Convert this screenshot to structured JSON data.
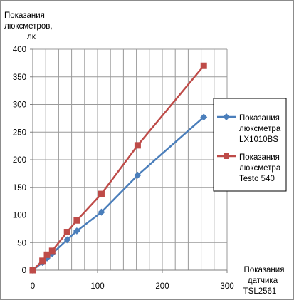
{
  "chart_data": {
    "type": "line",
    "ylabel_lines": [
      "Показания",
      "люксметров,",
      "лк"
    ],
    "xlabel_lines": [
      "Показания",
      "датчика",
      "TSL2561"
    ],
    "xlim": [
      0,
      300
    ],
    "ylim": [
      0,
      400
    ],
    "x_ticks": [
      0,
      100,
      200,
      300
    ],
    "y_ticks": [
      0,
      50,
      100,
      150,
      200,
      250,
      300,
      350,
      400
    ],
    "grid": true,
    "legend_position": "right",
    "series": [
      {
        "name_lines": [
          "Показания",
          "люксметра",
          "LX1010BS"
        ],
        "color": "#4a7ebb",
        "marker": "diamond",
        "x": [
          0,
          15,
          22,
          30,
          53,
          68,
          106,
          162,
          264
        ],
        "y": [
          0,
          14,
          22,
          30,
          55,
          71,
          105,
          172,
          277
        ]
      },
      {
        "name_lines": [
          "Показания",
          "люксметра",
          "Testo  540"
        ],
        "color": "#be4b48",
        "marker": "square",
        "x": [
          0,
          15,
          22,
          30,
          53,
          68,
          106,
          162,
          264
        ],
        "y": [
          0,
          17,
          28,
          35,
          69,
          90,
          138,
          226,
          370
        ]
      }
    ]
  }
}
